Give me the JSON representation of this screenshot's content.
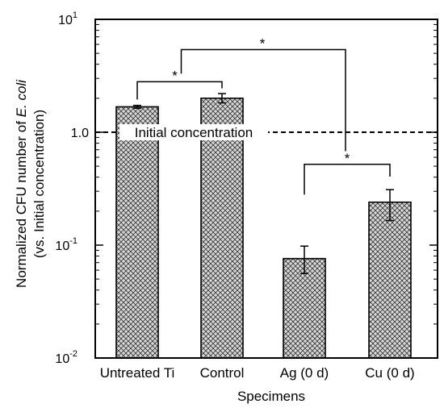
{
  "chart_data": {
    "type": "bar",
    "yscale": "log",
    "ylim": [
      0.01,
      10
    ],
    "categories": [
      "Untreated Ti",
      "Control",
      "Ag (0 d)",
      "Cu (0 d)"
    ],
    "values": [
      1.68,
      2.0,
      0.076,
      0.24
    ],
    "errors": [
      [
        1.63,
        1.73
      ],
      [
        1.82,
        2.2
      ],
      [
        0.056,
        0.098
      ],
      [
        0.165,
        0.31
      ]
    ],
    "xlabel": "Specimens",
    "ylabel_main": "Normalized CFU number of ",
    "ylabel_species": "E. coli",
    "ylabel_sub": "(vs. Initial concentration)",
    "yticks": [
      {
        "value": 10,
        "base": "10",
        "exp": "1"
      },
      {
        "value": 1,
        "base": "1.0",
        "exp": ""
      },
      {
        "value": 0.1,
        "base": "10",
        "exp": "-1"
      },
      {
        "value": 0.01,
        "base": "10",
        "exp": "-2"
      }
    ],
    "reference_line": {
      "value": 1.0,
      "label": "Initial concentration",
      "style": "dashed"
    },
    "significance": [
      {
        "from": 0,
        "to": 1,
        "label": "*"
      },
      {
        "from": 2,
        "to": 3,
        "label": "*"
      },
      {
        "from": "group-1",
        "to": "group-2",
        "label": "*"
      }
    ],
    "bar_fill": "crosshatch",
    "grid": false,
    "legend": "none"
  }
}
